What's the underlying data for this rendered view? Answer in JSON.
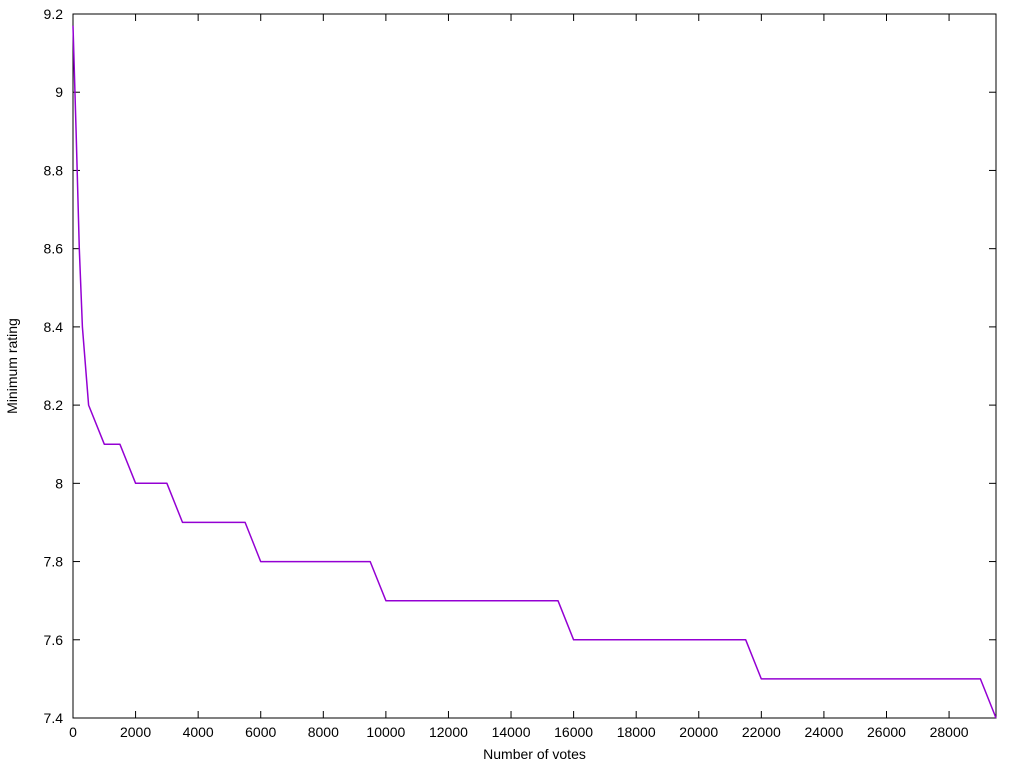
{
  "chart_data": {
    "type": "line",
    "title": "",
    "xlabel": "Number of votes",
    "ylabel": "Minimum rating",
    "xlim": [
      0,
      29500
    ],
    "ylim": [
      7.4,
      9.2
    ],
    "x_ticks": [
      0,
      2000,
      4000,
      6000,
      8000,
      10000,
      12000,
      14000,
      16000,
      18000,
      20000,
      22000,
      24000,
      26000,
      28000
    ],
    "y_ticks": [
      7.4,
      7.6,
      7.8,
      8,
      8.2,
      8.4,
      8.6,
      8.8,
      9,
      9.2
    ],
    "x_tick_labels": [
      "0",
      "2000",
      "4000",
      "6000",
      "8000",
      "10000",
      "12000",
      "14000",
      "16000",
      "18000",
      "20000",
      "22000",
      "24000",
      "26000",
      "28000"
    ],
    "y_tick_labels": [
      "7.4",
      "7.6",
      "7.8",
      "8",
      "8.2",
      "8.4",
      "8.6",
      "8.8",
      "9",
      "9.2"
    ],
    "grid": false,
    "legend": "none",
    "series": [
      {
        "color": "#9400d3",
        "x": [
          0,
          100,
          200,
          300,
          500,
          1000,
          1500,
          2000,
          3000,
          3500,
          5500,
          6000,
          9500,
          10000,
          15500,
          16000,
          21500,
          22000,
          29000,
          29500
        ],
        "y": [
          9.17,
          8.9,
          8.6,
          8.4,
          8.2,
          8.1,
          8.1,
          8.0,
          8.0,
          7.9,
          7.9,
          7.8,
          7.8,
          7.7,
          7.7,
          7.6,
          7.6,
          7.5,
          7.5,
          7.4
        ]
      }
    ]
  }
}
